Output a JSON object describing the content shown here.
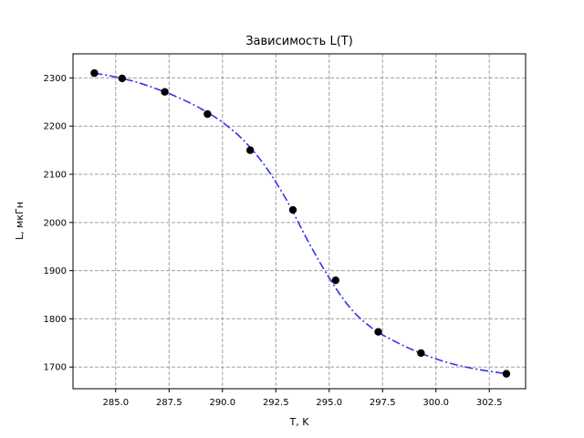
{
  "chart_data": {
    "type": "scatter",
    "title": "Зависимость L(T)",
    "xlabel": "T, K",
    "ylabel": "L, мкГн",
    "xlim": [
      283.0,
      304.2
    ],
    "ylim": [
      1655,
      2350
    ],
    "xticks": [
      285.0,
      287.5,
      290.0,
      292.5,
      295.0,
      297.5,
      300.0,
      302.5
    ],
    "xtick_labels": [
      "285.0",
      "287.5",
      "290.0",
      "292.5",
      "295.0",
      "297.5",
      "300.0",
      "302.5"
    ],
    "yticks": [
      1700,
      1800,
      1900,
      2000,
      2100,
      2200,
      2300
    ],
    "ytick_labels": [
      "1700",
      "1800",
      "1900",
      "2000",
      "2100",
      "2200",
      "2300"
    ],
    "grid": true,
    "points": {
      "x": [
        284.0,
        285.3,
        287.3,
        289.3,
        291.3,
        293.3,
        295.3,
        297.3,
        299.3,
        303.3
      ],
      "y": [
        2310,
        2299,
        2271,
        2225,
        2150,
        2026,
        1880,
        1773,
        1729,
        1686
      ],
      "color": "#000000"
    },
    "fit_curve": {
      "style": "dash-dot",
      "color": "#3333ee",
      "x": [
        284.0,
        285.0,
        286.0,
        287.0,
        288.0,
        289.0,
        290.0,
        291.0,
        292.0,
        293.0,
        294.0,
        295.0,
        296.0,
        297.0,
        298.0,
        299.0,
        300.0,
        301.0,
        302.0,
        303.0,
        303.3
      ],
      "y": [
        2310,
        2302,
        2291,
        2276,
        2258,
        2236,
        2208,
        2170,
        2117,
        2047,
        1962,
        1885,
        1822,
        1781,
        1755,
        1734,
        1717,
        1704,
        1695,
        1688,
        1686
      ]
    }
  }
}
